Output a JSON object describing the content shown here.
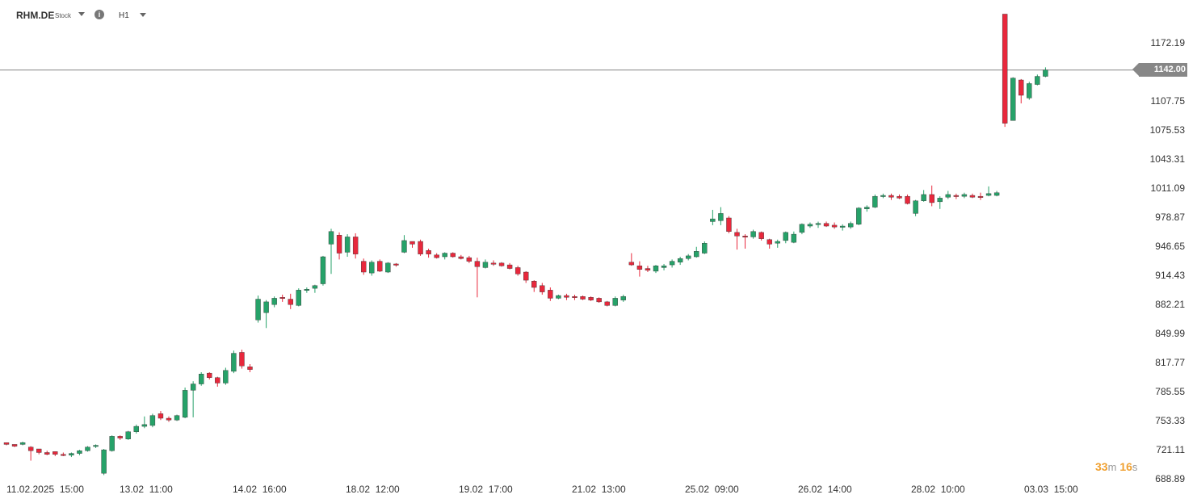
{
  "header": {
    "symbol": "RHM.DE",
    "instrument_type": "Stock",
    "timeframe": "H1",
    "info_icon": "info-icon",
    "symbol_dropdown_icon": "caret-down-icon",
    "timeframe_dropdown_icon": "caret-down-icon"
  },
  "current_price_label": "1142.00",
  "countdown": {
    "minutes": "33",
    "minutes_unit": "m",
    "seconds": "16",
    "seconds_unit": "s"
  },
  "colors": {
    "up": "#26a269",
    "down": "#e8283c",
    "price_line": "#888888",
    "countdown": "#f0a030"
  },
  "chart_data": {
    "type": "candlestick",
    "title": "",
    "ylim": [
      688.89,
      1204.41
    ],
    "current_price": 1142.0,
    "y_ticks": [
      "1172.19",
      "1107.75",
      "1075.53",
      "1043.31",
      "1011.09",
      "978.87",
      "946.65",
      "914.43",
      "882.21",
      "849.99",
      "817.77",
      "785.55",
      "753.33",
      "721.11",
      "688.89"
    ],
    "x_ticks": [
      "11.02.2025  15:00",
      "13.02  11:00",
      "14.02  16:00",
      "18.02  12:00",
      "19.02  17:00",
      "21.02  13:00",
      "25.02  09:00",
      "26.02  14:00",
      "28.02  10:00",
      "03.03  15:00"
    ],
    "candles": [
      [
        729,
        729,
        726,
        727
      ],
      [
        727,
        727,
        724,
        725
      ],
      [
        727,
        730,
        726,
        729
      ],
      [
        724,
        725,
        709,
        720
      ],
      [
        722,
        722,
        716,
        718
      ],
      [
        718,
        720,
        715,
        716
      ],
      [
        719,
        719,
        714,
        716
      ],
      [
        716,
        718,
        714,
        715
      ],
      [
        715,
        718,
        713,
        717
      ],
      [
        717,
        721,
        715,
        720
      ],
      [
        720,
        725,
        719,
        724
      ],
      [
        725,
        727,
        723,
        726
      ],
      [
        695,
        722,
        693,
        721
      ],
      [
        720,
        737,
        719,
        736
      ],
      [
        736,
        737,
        732,
        734
      ],
      [
        733,
        742,
        732,
        741
      ],
      [
        741,
        749,
        739,
        747
      ],
      [
        747,
        758,
        745,
        749
      ],
      [
        748,
        761,
        746,
        759
      ],
      [
        761,
        764,
        754,
        756
      ],
      [
        756,
        758,
        752,
        754
      ],
      [
        754,
        760,
        753,
        759
      ],
      [
        757,
        790,
        756,
        787
      ],
      [
        787,
        797,
        757,
        794
      ],
      [
        794,
        807,
        792,
        805
      ],
      [
        806,
        807,
        799,
        801
      ],
      [
        801,
        802,
        791,
        795
      ],
      [
        795,
        812,
        793,
        809
      ],
      [
        808,
        831,
        806,
        828
      ],
      [
        829,
        832,
        811,
        814
      ],
      [
        813,
        816,
        807,
        810
      ],
      [
        865,
        892,
        862,
        888
      ],
      [
        873,
        887,
        856,
        885
      ],
      [
        882,
        891,
        879,
        889
      ],
      [
        890,
        893,
        885,
        889
      ],
      [
        888,
        894,
        877,
        882
      ],
      [
        881,
        900,
        880,
        898
      ],
      [
        899,
        901,
        895,
        899
      ],
      [
        900,
        904,
        895,
        903
      ],
      [
        905,
        936,
        903,
        935
      ],
      [
        949,
        966,
        916,
        963
      ],
      [
        959,
        962,
        932,
        939
      ],
      [
        940,
        960,
        935,
        957
      ],
      [
        957,
        961,
        933,
        938
      ],
      [
        930,
        933,
        915,
        918
      ],
      [
        917,
        931,
        914,
        929
      ],
      [
        930,
        932,
        918,
        919
      ],
      [
        918,
        929,
        917,
        928
      ],
      [
        927,
        928,
        924,
        926
      ],
      [
        940,
        959,
        939,
        953
      ],
      [
        952,
        952,
        945,
        949
      ],
      [
        952,
        954,
        936,
        938
      ],
      [
        942,
        944,
        934,
        938
      ],
      [
        937,
        939,
        933,
        934
      ],
      [
        935,
        940,
        932,
        939
      ],
      [
        939,
        940,
        934,
        935
      ],
      [
        935,
        937,
        932,
        933
      ],
      [
        934,
        936,
        928,
        930
      ],
      [
        930,
        934,
        890,
        924
      ],
      [
        923,
        932,
        922,
        929
      ],
      [
        928,
        931,
        925,
        927
      ],
      [
        928,
        929,
        924,
        925
      ],
      [
        926,
        928,
        921,
        922
      ],
      [
        923,
        925,
        914,
        916
      ],
      [
        918,
        919,
        906,
        909
      ],
      [
        908,
        909,
        896,
        901
      ],
      [
        903,
        906,
        893,
        896
      ],
      [
        898,
        901,
        886,
        889
      ],
      [
        889,
        893,
        888,
        892
      ],
      [
        892,
        894,
        887,
        890
      ],
      [
        891,
        893,
        887,
        890
      ],
      [
        891,
        892,
        887,
        888
      ],
      [
        890,
        891,
        886,
        887
      ],
      [
        889,
        890,
        884,
        885
      ],
      [
        885,
        886,
        880,
        881
      ],
      [
        881,
        891,
        880,
        889
      ],
      [
        887,
        893,
        885,
        891
      ],
      [
        929,
        939,
        925,
        926
      ],
      [
        925,
        930,
        913,
        921
      ],
      [
        922,
        925,
        918,
        920
      ],
      [
        919,
        926,
        917,
        925
      ],
      [
        923,
        927,
        920,
        925
      ],
      [
        926,
        932,
        923,
        930
      ],
      [
        929,
        935,
        926,
        933
      ],
      [
        933,
        938,
        931,
        936
      ],
      [
        935,
        946,
        934,
        941
      ],
      [
        939,
        952,
        938,
        950
      ],
      [
        974,
        987,
        970,
        977
      ],
      [
        975,
        990,
        970,
        983
      ],
      [
        978,
        980,
        961,
        963
      ],
      [
        962,
        966,
        943,
        958
      ],
      [
        958,
        960,
        944,
        957
      ],
      [
        957,
        965,
        955,
        963
      ],
      [
        962,
        963,
        953,
        955
      ],
      [
        954,
        955,
        944,
        949
      ],
      [
        950,
        954,
        945,
        952
      ],
      [
        953,
        963,
        950,
        962
      ],
      [
        951,
        963,
        950,
        960
      ],
      [
        962,
        972,
        960,
        971
      ],
      [
        969,
        973,
        967,
        971
      ],
      [
        971,
        974,
        967,
        972
      ],
      [
        972,
        974,
        968,
        969
      ],
      [
        970,
        973,
        966,
        968
      ],
      [
        968,
        971,
        964,
        969
      ],
      [
        968,
        974,
        966,
        972
      ],
      [
        971,
        990,
        970,
        989
      ],
      [
        988,
        992,
        985,
        990
      ],
      [
        990,
        1004,
        989,
        1002
      ],
      [
        1002,
        1005,
        1000,
        1003
      ],
      [
        1003,
        1005,
        998,
        1001
      ],
      [
        1002,
        1004,
        999,
        1000
      ],
      [
        1002,
        1004,
        993,
        994
      ],
      [
        983,
        998,
        980,
        997
      ],
      [
        997,
        1009,
        996,
        1004
      ],
      [
        1004,
        1014,
        991,
        995
      ],
      [
        996,
        1002,
        988,
        1000
      ],
      [
        1001,
        1008,
        999,
        1004
      ],
      [
        1003,
        1005,
        999,
        1002
      ],
      [
        1002,
        1006,
        1000,
        1004
      ],
      [
        1003,
        1005,
        1000,
        1001
      ],
      [
        1002,
        1006,
        998,
        1001
      ],
      [
        1003,
        1013,
        1002,
        1005
      ],
      [
        1003,
        1008,
        1002,
        1006
      ],
      [
        1204,
        1204,
        1079,
        1083
      ],
      [
        1086,
        1134,
        1086,
        1133
      ],
      [
        1131,
        1132,
        1105,
        1114
      ],
      [
        1111,
        1129,
        1109,
        1127
      ],
      [
        1126,
        1137,
        1125,
        1135
      ],
      [
        1135,
        1145,
        1134,
        1142
      ]
    ],
    "candle_fields": [
      "open",
      "high",
      "low",
      "close"
    ],
    "grid": false
  }
}
